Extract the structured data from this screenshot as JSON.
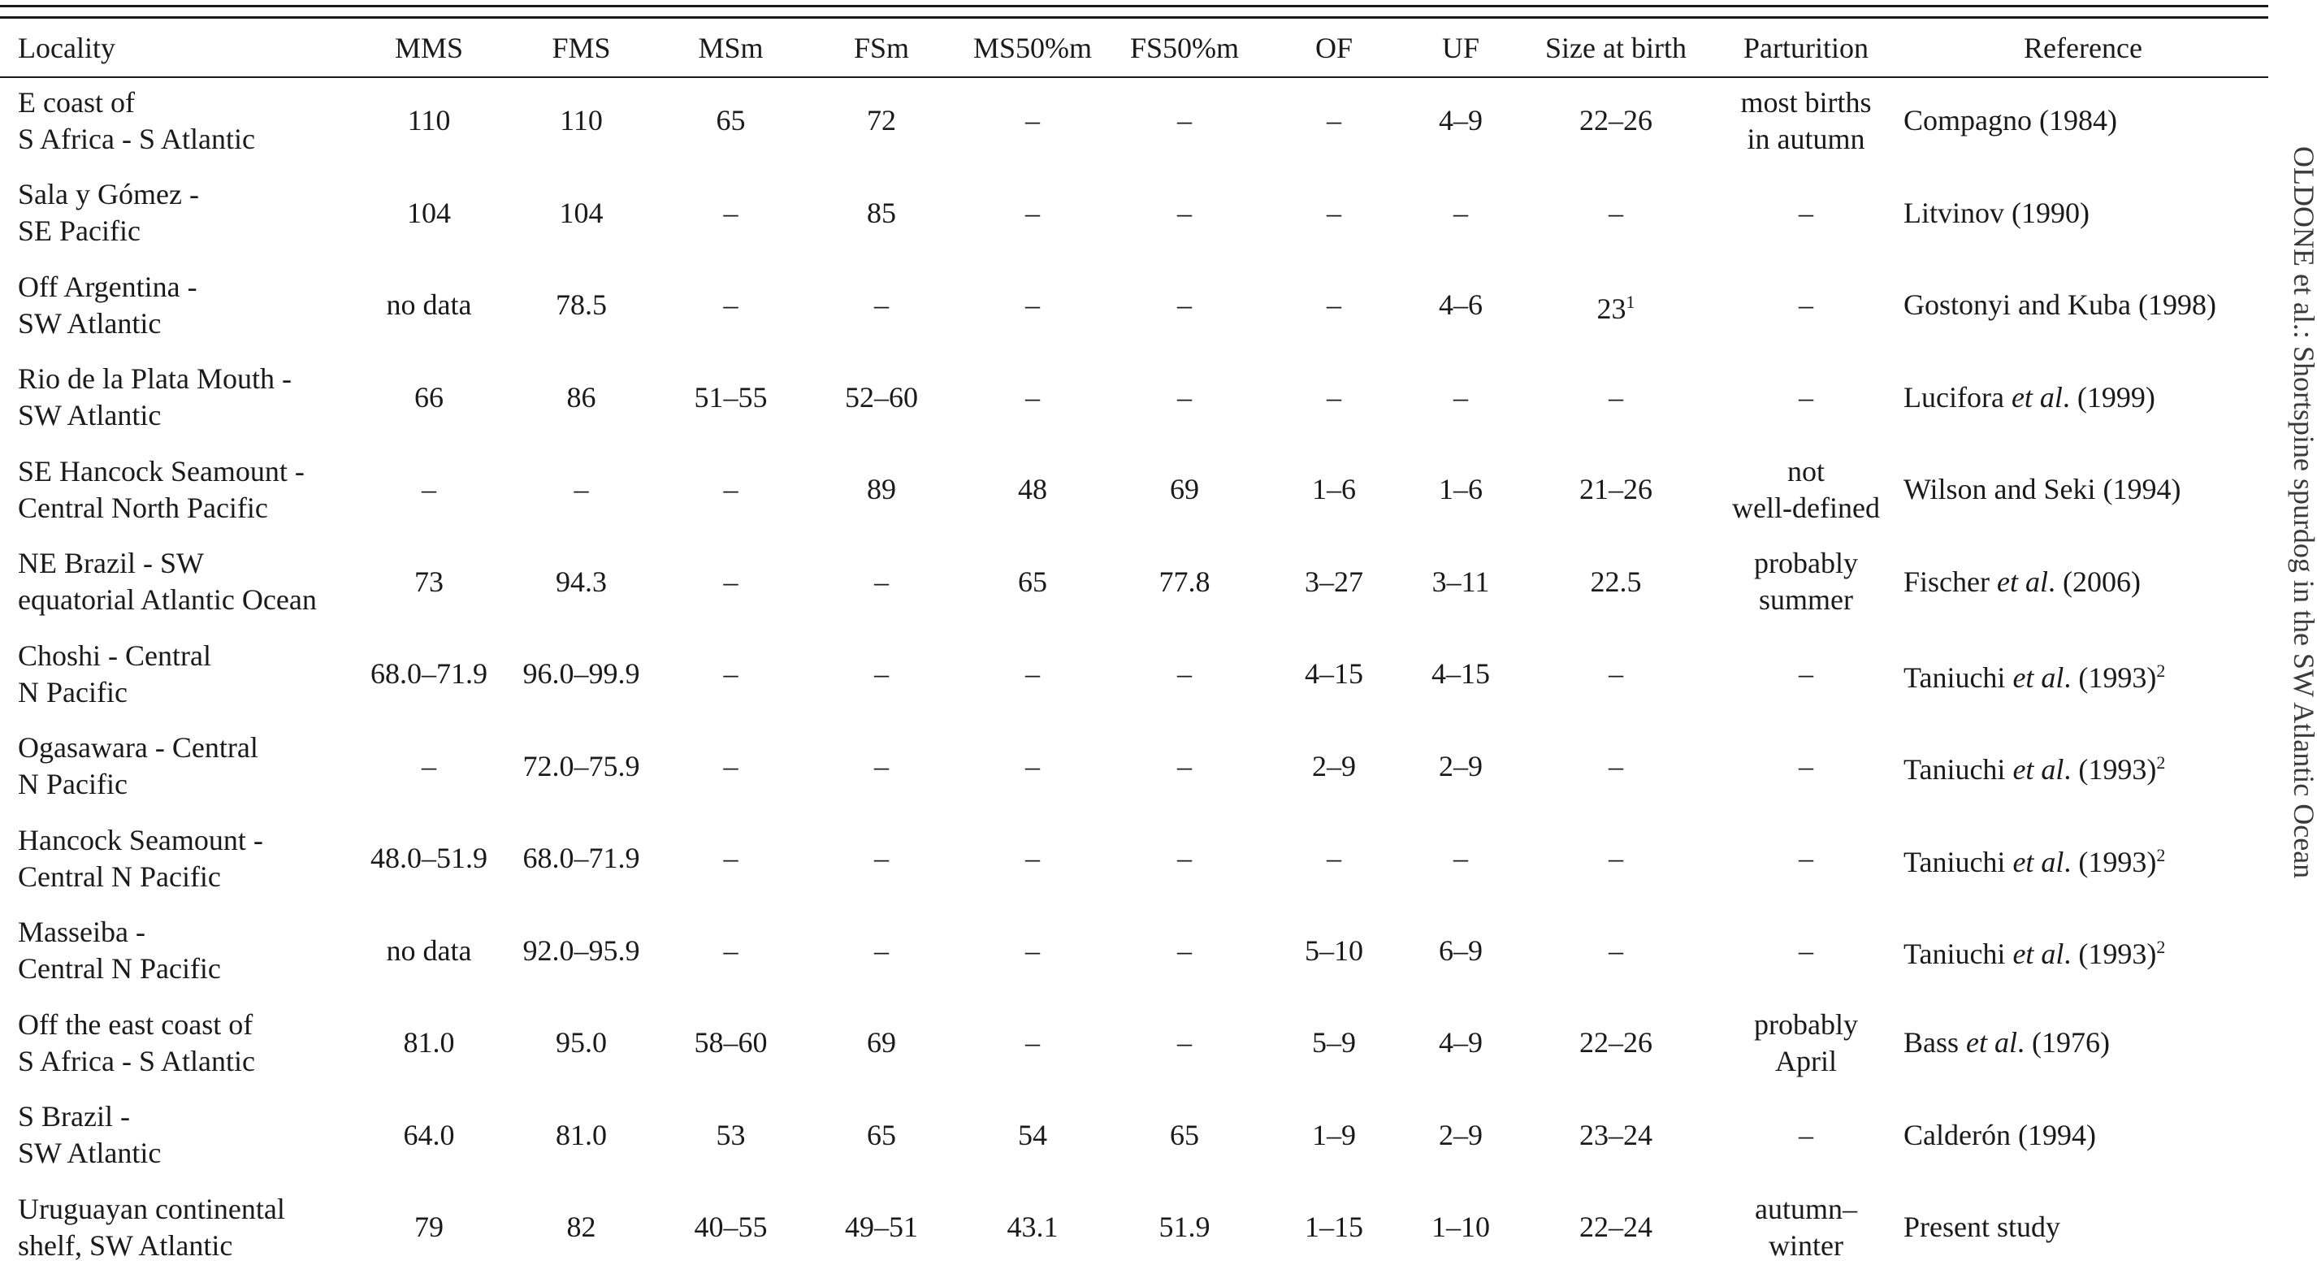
{
  "table": {
    "headers": [
      "Locality",
      "MMS",
      "FMS",
      "MSm",
      "FSm",
      "MS50%m",
      "FS50%m",
      "OF",
      "UF",
      "Size at birth",
      "Parturition",
      "Reference"
    ],
    "rows": [
      {
        "locality": "E coast of\nS Africa - S Atlantic",
        "mms": "110",
        "fms": "110",
        "msm": "65",
        "fsm": "72",
        "ms50": "–",
        "fs50": "–",
        "of": "–",
        "uf": "4–9",
        "birth": "22–26",
        "parturition": "most births\nin autumn",
        "ref": {
          "pre": "Compagno (1984)",
          "em": "",
          "post": "",
          "sup": ""
        }
      },
      {
        "locality": "Sala y Gómez -\nSE Pacific",
        "mms": "104",
        "fms": "104",
        "msm": "–",
        "fsm": "85",
        "ms50": "–",
        "fs50": "–",
        "of": "–",
        "uf": "–",
        "birth": "–",
        "parturition": "–",
        "ref": {
          "pre": "Litvinov (1990)",
          "em": "",
          "post": "",
          "sup": ""
        }
      },
      {
        "locality": "Off Argentina -\nSW Atlantic",
        "mms": "no data",
        "fms": "78.5",
        "msm": "–",
        "fsm": "–",
        "ms50": "–",
        "fs50": "–",
        "of": "–",
        "uf": "4–6",
        "birth": "23",
        "birth_sup": "1",
        "parturition": "–",
        "ref": {
          "pre": "Gostonyi and Kuba (1998)",
          "em": "",
          "post": "",
          "sup": ""
        }
      },
      {
        "locality": "Rio de la Plata Mouth -\nSW Atlantic",
        "mms": "66",
        "fms": "86",
        "msm": "51–55",
        "fsm": "52–60",
        "ms50": "–",
        "fs50": "–",
        "of": "–",
        "uf": "–",
        "birth": "–",
        "parturition": "–",
        "ref": {
          "pre": "Lucifora ",
          "em": "et al",
          "post": ". (1999)",
          "sup": ""
        }
      },
      {
        "locality": "SE Hancock Seamount -\nCentral North Pacific",
        "mms": "–",
        "fms": "–",
        "msm": "–",
        "fsm": "89",
        "ms50": "48",
        "fs50": "69",
        "of": "1–6",
        "uf": "1–6",
        "birth": "21–26",
        "parturition": "not\nwell-defined",
        "ref": {
          "pre": "Wilson and Seki (1994)",
          "em": "",
          "post": "",
          "sup": ""
        }
      },
      {
        "locality": "NE Brazil - SW\nequatorial Atlantic Ocean",
        "mms": "73",
        "fms": "94.3",
        "msm": "–",
        "fsm": "–",
        "ms50": "65",
        "fs50": "77.8",
        "of": "3–27",
        "uf": "3–11",
        "birth": "22.5",
        "parturition": "probably\nsummer",
        "ref": {
          "pre": "Fischer ",
          "em": "et al",
          "post": ". (2006)",
          "sup": ""
        }
      },
      {
        "locality": "Choshi - Central\nN Pacific",
        "mms": "68.0–71.9",
        "fms": "96.0–99.9",
        "msm": "–",
        "fsm": "–",
        "ms50": "–",
        "fs50": "–",
        "of": "4–15",
        "uf": "4–15",
        "birth": "–",
        "parturition": "–",
        "ref": {
          "pre": "Taniuchi ",
          "em": "et al",
          "post": ". (1993)",
          "sup": "2"
        }
      },
      {
        "locality": "Ogasawara - Central\nN Pacific",
        "mms": "–",
        "fms": "72.0–75.9",
        "msm": "–",
        "fsm": "–",
        "ms50": "–",
        "fs50": "–",
        "of": "2–9",
        "uf": "2–9",
        "birth": "–",
        "parturition": "–",
        "ref": {
          "pre": "Taniuchi ",
          "em": "et al",
          "post": ". (1993)",
          "sup": "2"
        }
      },
      {
        "locality": "Hancock Seamount -\nCentral N Pacific",
        "mms": "48.0–51.9",
        "fms": "68.0–71.9",
        "msm": "–",
        "fsm": "–",
        "ms50": "–",
        "fs50": "–",
        "of": "–",
        "uf": "–",
        "birth": "–",
        "parturition": "–",
        "ref": {
          "pre": "Taniuchi ",
          "em": "et al",
          "post": ". (1993)",
          "sup": "2"
        }
      },
      {
        "locality": "Masseiba -\nCentral N Pacific",
        "mms": "no data",
        "fms": "92.0–95.9",
        "msm": "–",
        "fsm": "–",
        "ms50": "–",
        "fs50": "–",
        "of": "5–10",
        "uf": "6–9",
        "birth": "–",
        "parturition": "–",
        "ref": {
          "pre": "Taniuchi ",
          "em": "et al",
          "post": ". (1993)",
          "sup": "2"
        }
      },
      {
        "locality": "Off the east coast of\nS Africa - S Atlantic",
        "mms": "81.0",
        "fms": "95.0",
        "msm": "58–60",
        "fsm": "69",
        "ms50": "–",
        "fs50": "–",
        "of": "5–9",
        "uf": "4–9",
        "birth": "22–26",
        "parturition": "probably\nApril",
        "ref": {
          "pre": "Bass ",
          "em": "et al",
          "post": ". (1976)",
          "sup": ""
        }
      },
      {
        "locality": "S Brazil -\nSW Atlantic",
        "mms": "64.0",
        "fms": "81.0",
        "msm": "53",
        "fsm": "65",
        "ms50": "54",
        "fs50": "65",
        "of": "1–9",
        "uf": "2–9",
        "birth": "23–24",
        "parturition": "–",
        "ref": {
          "pre": "Calderón (1994)",
          "em": "",
          "post": "",
          "sup": ""
        }
      },
      {
        "locality": "Uruguayan continental\nshelf, SW Atlantic",
        "mms": "79",
        "fms": "82",
        "msm": "40–55",
        "fsm": "49–51",
        "ms50": "43.1",
        "fs50": "51.9",
        "of": "1–15",
        "uf": "1–10",
        "birth": "22–24",
        "parturition": "autumn–\nwinter",
        "ref": {
          "pre": "Present study",
          "em": "",
          "post": "",
          "sup": ""
        }
      }
    ]
  },
  "running_header": "OLDONE et al.: Shortspine spurdog in the SW Atlantic Ocean"
}
